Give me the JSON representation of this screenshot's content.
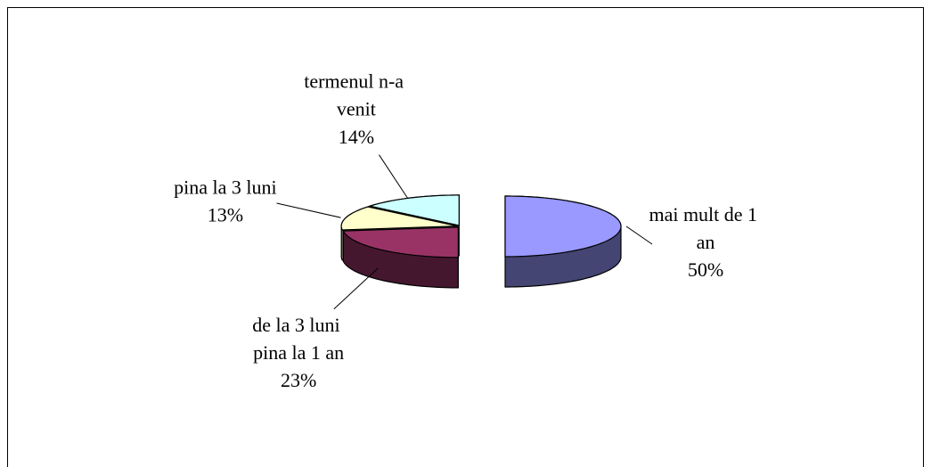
{
  "chart_data": {
    "type": "pie3d",
    "categories": [
      "mai mult de 1 an",
      "de la 3 luni pina la 1 an",
      "pina la 3 luni",
      "termenul n-a venit"
    ],
    "values": [
      50,
      23,
      13,
      14
    ],
    "value_labels": [
      "50%",
      "23%",
      "13%",
      "14%"
    ],
    "colors": [
      "#9999ff",
      "#993366",
      "#ffffcc",
      "#ccffff"
    ]
  }
}
